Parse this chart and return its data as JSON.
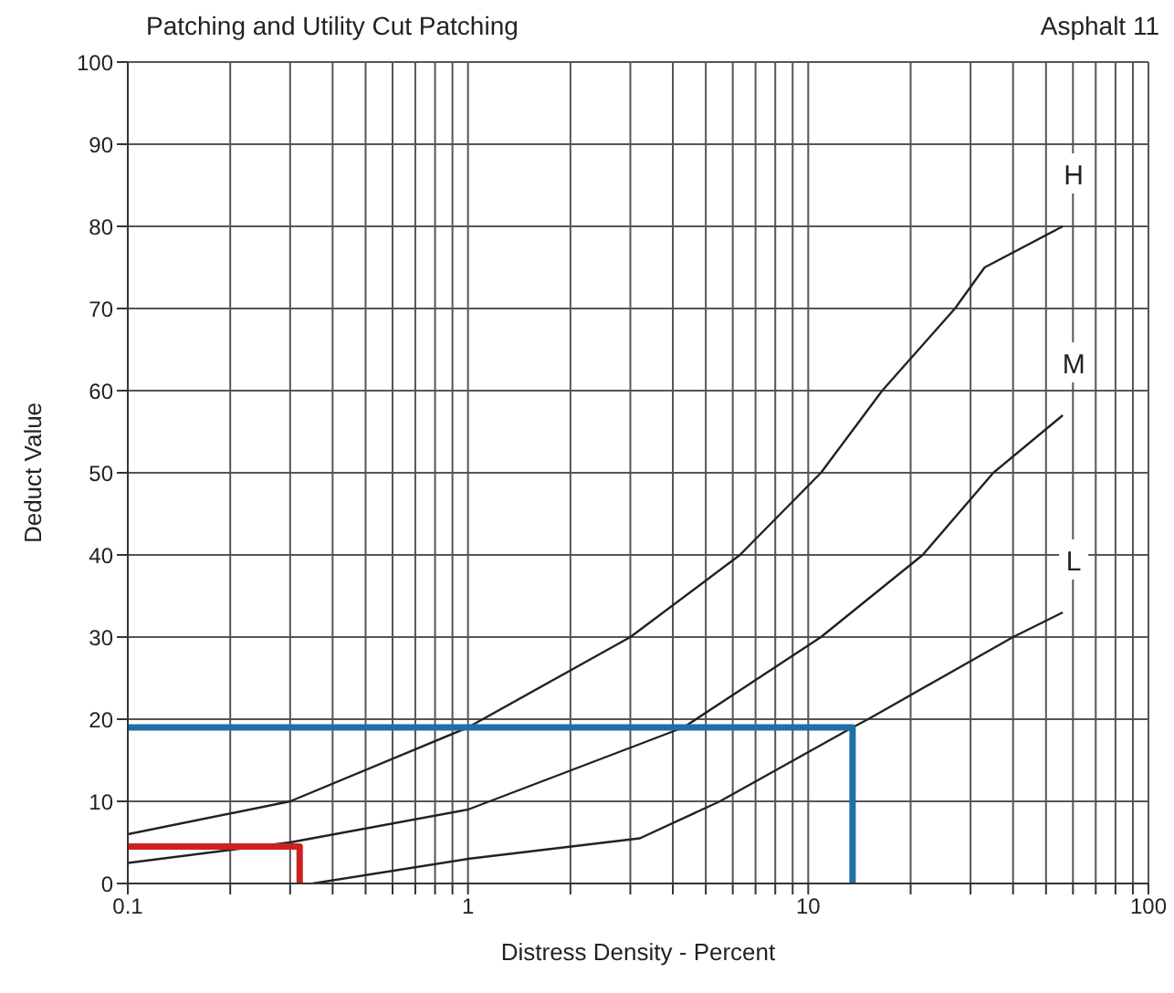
{
  "chart_data": {
    "type": "line",
    "title": "Patching and Utility Cut Patching",
    "annotations": [
      "Asphalt 11"
    ],
    "xlabel": "Distress Density - Percent",
    "ylabel": "Deduct Value",
    "log": "x",
    "xlim": [
      0.1,
      100
    ],
    "ylim": [
      0,
      100
    ],
    "xticks": [
      0.1,
      {
        "value": 0.2,
        "label": null
      },
      {
        "value": 0.3,
        "label": null
      },
      {
        "value": 0.4,
        "label": null
      },
      {
        "value": 0.5,
        "label": null
      },
      {
        "value": 0.6,
        "label": null
      },
      {
        "value": 0.7,
        "label": null
      },
      {
        "value": 0.8,
        "label": null
      },
      {
        "value": 0.9,
        "label": null
      },
      1,
      {
        "value": 2,
        "label": null
      },
      {
        "value": 3,
        "label": null
      },
      {
        "value": 4,
        "label": null
      },
      {
        "value": 5,
        "label": null
      },
      {
        "value": 6,
        "label": null
      },
      {
        "value": 7,
        "label": null
      },
      {
        "value": 8,
        "label": null
      },
      {
        "value": 9,
        "label": null
      },
      10,
      {
        "value": 20,
        "label": null
      },
      {
        "value": 30,
        "label": null
      },
      {
        "value": 40,
        "label": null
      },
      {
        "value": 50,
        "label": null
      },
      {
        "value": 60,
        "label": null
      },
      {
        "value": 70,
        "label": null
      },
      {
        "value": 80,
        "label": null
      },
      {
        "value": 90,
        "label": null
      },
      100
    ],
    "yticks": [
      0,
      10,
      20,
      30,
      40,
      50,
      60,
      70,
      80,
      90,
      100
    ],
    "grid": true,
    "marker": "none",
    "line_style": "solid",
    "legend": false,
    "series": [
      {
        "name": "H",
        "color": "#222222",
        "x": [
          0.1,
          0.3,
          1,
          3,
          6.3,
          10.9,
          16.5,
          27,
          33,
          56
        ],
        "values": [
          6,
          10,
          19,
          30,
          40,
          50,
          60,
          70,
          75,
          80
        ]
      },
      {
        "name": "M",
        "color": "#222222",
        "x": [
          0.1,
          0.3,
          1,
          4.3,
          10.9,
          21.7,
          35,
          56
        ],
        "values": [
          2.5,
          5,
          9,
          19,
          30,
          40,
          50,
          57
        ]
      },
      {
        "name": "L",
        "color": "#222222",
        "x": [
          0.35,
          1,
          3.2,
          5.5,
          13.5,
          15,
          40,
          56
        ],
        "values": [
          0,
          3,
          5.5,
          10,
          19,
          20,
          30,
          33
        ]
      },
      {
        "color": "#1f6fa8",
        "x": [
          0.1,
          13.5,
          13.5
        ],
        "values": [
          19,
          19,
          0
        ]
      },
      {
        "color": "#cc2222",
        "x": [
          0.1,
          0.32,
          0.32
        ],
        "values": [
          4.5,
          4.5,
          0
        ]
      }
    ]
  }
}
